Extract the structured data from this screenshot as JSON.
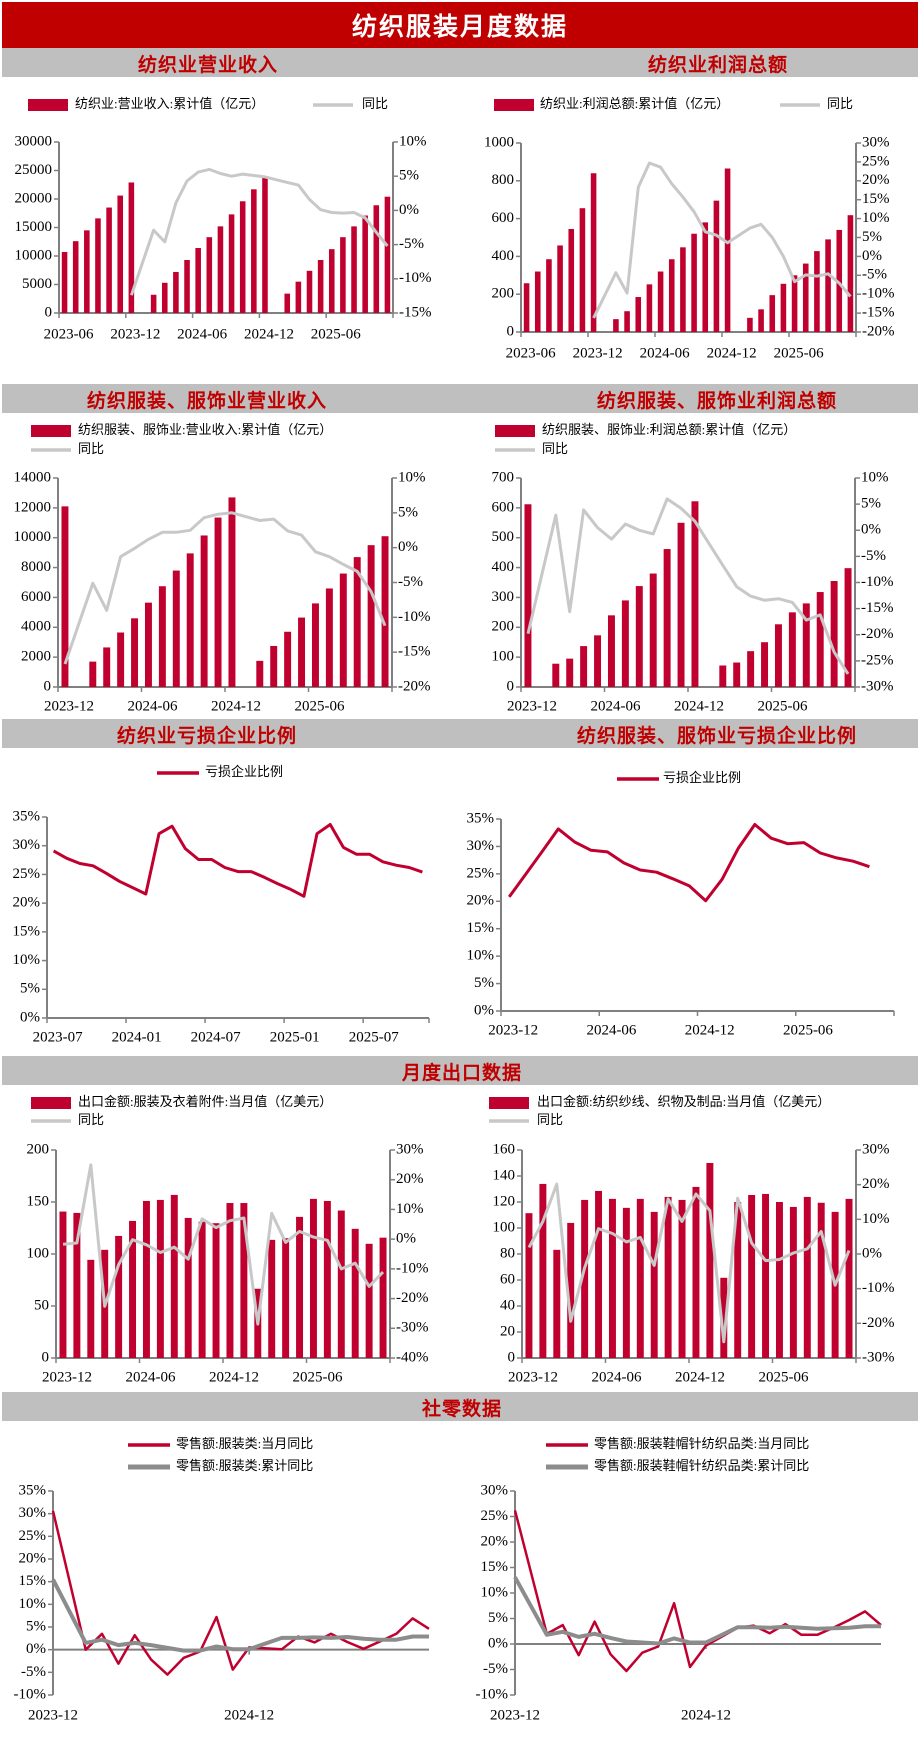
{
  "page_title": "纺织服装月度数据",
  "sections": [
    {
      "titles": [
        "纺织业营业收入",
        "纺织业利润总额"
      ]
    },
    {
      "titles": [
        "纺织服装、服饰业营业收入",
        "纺织服装、服饰业利润总额"
      ]
    },
    {
      "titles": [
        "纺织业亏损企业比例",
        "纺织服装、服饰业亏损企业比例"
      ]
    },
    {
      "titles": [
        "月度出口数据"
      ]
    },
    {
      "titles": [
        "社零数据"
      ]
    }
  ],
  "colors": {
    "bar": "#c0002f",
    "yoy_line": "#c8c8c8",
    "cum_line": "#8c8c8c",
    "title_bg": "#c00000",
    "header_bg": "#bfbfbf",
    "axis": "#808080"
  },
  "chart_data": [
    {
      "type": "bar",
      "title": "纺织业营业收入",
      "x_start": "2023-06",
      "x_step": "month",
      "xtick_labels": [
        "2023-06",
        "2023-12",
        "2024-06",
        "2024-12",
        "2025-06"
      ],
      "left_axis": {
        "min": 0,
        "max": 30000,
        "ticks": [
          "0",
          "5000",
          "10000",
          "15000",
          "20000",
          "25000",
          "30000"
        ]
      },
      "right_axis": {
        "min": -15,
        "max": 10,
        "ticks": [
          "-15%",
          "-10%",
          "-5%",
          "0%",
          "5%",
          "10%"
        ]
      },
      "series": [
        {
          "name": "纺织业:营业收入:累计值（亿元）",
          "kind": "bar",
          "axis": "left",
          "values": [
            10700,
            12600,
            14500,
            16600,
            18500,
            20600,
            22900,
            null,
            3200,
            5300,
            7200,
            9300,
            11400,
            13300,
            15200,
            17300,
            19600,
            21700,
            23800,
            null,
            3400,
            5500,
            7400,
            9300,
            11200,
            13300,
            15200,
            17100,
            18900,
            20400
          ]
        },
        {
          "name": "同比",
          "kind": "line",
          "axis": "right",
          "values": [
            null,
            null,
            null,
            null,
            null,
            null,
            -12.4,
            null,
            -2.9,
            -4.6,
            1.1,
            4.3,
            5.6,
            6.0,
            5.4,
            5.0,
            5.3,
            5.1,
            4.9,
            null,
            4.1,
            3.7,
            1.6,
            0.1,
            -0.3,
            -0.4,
            -0.3,
            -1.1,
            -3.2,
            -5.2
          ]
        }
      ]
    },
    {
      "type": "bar",
      "title": "纺织业利润总额",
      "x_start": "2023-06",
      "x_step": "month",
      "xtick_labels": [
        "2023-06",
        "2023-12",
        "2024-06",
        "2024-12",
        "2025-06"
      ],
      "left_axis": {
        "min": 0,
        "max": 1000,
        "ticks": [
          "0",
          "200",
          "400",
          "600",
          "800",
          "1000"
        ]
      },
      "right_axis": {
        "min": -20,
        "max": 30,
        "ticks": [
          "-20%",
          "-15%",
          "-10%",
          "-5%",
          "0%",
          "5%",
          "10%",
          "15%",
          "20%",
          "25%",
          "30%"
        ]
      },
      "series": [
        {
          "name": "纺织业:利润总额:累计值（亿元）",
          "kind": "bar",
          "axis": "left",
          "values": [
            258,
            320,
            385,
            458,
            545,
            655,
            840,
            null,
            68,
            110,
            185,
            252,
            320,
            385,
            448,
            520,
            580,
            695,
            865,
            null,
            75,
            120,
            195,
            255,
            300,
            362,
            428,
            490,
            540,
            618
          ]
        },
        {
          "name": "同比",
          "kind": "line",
          "axis": "right",
          "values": [
            null,
            null,
            null,
            null,
            null,
            null,
            -16.3,
            null,
            -4.3,
            -9.7,
            18.3,
            24.7,
            23.6,
            19.2,
            15.7,
            11.8,
            6.5,
            5.6,
            3.6,
            null,
            7.5,
            8.5,
            5,
            0,
            -6.7,
            -4.9,
            -5.2,
            -4.6,
            -7.1,
            -10.6
          ]
        }
      ]
    },
    {
      "type": "bar",
      "title": "纺织服装、服饰业营业收入",
      "x_start": "2023-12",
      "x_step": "month",
      "xtick_labels": [
        "2023-12",
        "2024-06",
        "2024-12",
        "2025-06"
      ],
      "left_axis": {
        "min": 0,
        "max": 14000,
        "ticks": [
          "0",
          "2000",
          "4000",
          "6000",
          "8000",
          "10000",
          "12000",
          "14000"
        ]
      },
      "right_axis": {
        "min": -20,
        "max": 10,
        "ticks": [
          "-20%",
          "-15%",
          "-10%",
          "-5%",
          "0%",
          "5%",
          "10%"
        ]
      },
      "series": [
        {
          "name": "纺织服装、服饰业:营业收入:累计值（亿元）",
          "kind": "bar",
          "axis": "left",
          "values": [
            12100,
            null,
            1700,
            2650,
            3650,
            4600,
            5650,
            6750,
            7800,
            8950,
            10150,
            11350,
            12700,
            null,
            1750,
            2750,
            3700,
            4650,
            5600,
            6600,
            7600,
            8700,
            9500,
            10100
          ]
        },
        {
          "name": "同比",
          "kind": "line",
          "axis": "right",
          "values": [
            -16.7,
            null,
            -5.1,
            -9,
            -1.3,
            -0.1,
            1.2,
            2.2,
            2.2,
            2.5,
            4.3,
            4.8,
            5.0,
            null,
            3.9,
            4.1,
            2.4,
            1.8,
            -0.6,
            -1.3,
            -2.4,
            -3.4,
            -6.3,
            -11.2
          ]
        }
      ]
    },
    {
      "type": "bar",
      "title": "纺织服装、服饰业利润总额",
      "x_start": "2023-12",
      "x_step": "month",
      "xtick_labels": [
        "2023-12",
        "2024-06",
        "2024-12",
        "2025-06"
      ],
      "left_axis": {
        "min": 0,
        "max": 700,
        "ticks": [
          "0",
          "100",
          "200",
          "300",
          "400",
          "500",
          "600",
          "700"
        ]
      },
      "right_axis": {
        "min": -30,
        "max": 10,
        "ticks": [
          "-30%",
          "-25%",
          "-20%",
          "-15%",
          "-10%",
          "-5%",
          "0%",
          "5%",
          "10%"
        ]
      },
      "series": [
        {
          "name": "纺织服装、服饰业:利润总额:累计值（亿元）",
          "kind": "bar",
          "axis": "left",
          "values": [
            612,
            null,
            78,
            95,
            137,
            173,
            240,
            290,
            338,
            380,
            462,
            550,
            622,
            null,
            72,
            82,
            120,
            150,
            210,
            250,
            280,
            318,
            355,
            398
          ]
        },
        {
          "name": "同比",
          "kind": "line",
          "axis": "right",
          "values": [
            -19.8,
            null,
            2.9,
            -15.6,
            3.9,
            0.5,
            -1.7,
            1.2,
            0,
            -0.7,
            6.0,
            4.2,
            1.7,
            null,
            -6.7,
            -10.8,
            -12.6,
            -13.4,
            -13.1,
            -13.8,
            -17.2,
            -16.2,
            -23.3,
            -27.5
          ]
        }
      ]
    },
    {
      "type": "line",
      "title": "纺织业亏损企业比例",
      "x_start": "2023-07",
      "x_step": "month",
      "xtick_labels": [
        "2023-07",
        "2024-01",
        "2024-07",
        "2025-01",
        "2025-07"
      ],
      "left_axis": {
        "min": 0,
        "max": 35,
        "ticks": [
          "0%",
          "5%",
          "10%",
          "15%",
          "20%",
          "25%",
          "30%",
          "35%"
        ]
      },
      "series": [
        {
          "name": "亏损企业比例",
          "kind": "line",
          "axis": "left",
          "values": [
            29.1,
            27.8,
            26.9,
            26.5,
            25.2,
            23.8,
            22.7,
            21.6,
            32.1,
            33.4,
            29.5,
            27.6,
            27.6,
            26.2,
            25.5,
            25.5,
            24.5,
            23.4,
            22.4,
            21.2,
            32.1,
            33.7,
            29.7,
            28.5,
            28.5,
            27.2,
            26.6,
            26.2,
            25.4
          ]
        }
      ]
    },
    {
      "type": "line",
      "title": "纺织服装、服饰业亏损企业比例",
      "x_start": "2023-12",
      "x_step": "month",
      "xtick_labels": [
        "2023-12",
        "2024-06",
        "2024-12",
        "2025-06"
      ],
      "left_axis": {
        "min": 0,
        "max": 35,
        "ticks": [
          "0%",
          "5%",
          "10%",
          "15%",
          "20%",
          "25%",
          "30%",
          "35%"
        ]
      },
      "series": [
        {
          "name": "亏损企业比例",
          "kind": "line",
          "axis": "left",
          "values": [
            20.8,
            24.9,
            29.0,
            33.2,
            30.8,
            29.3,
            29.0,
            27.0,
            25.7,
            25.3,
            24.1,
            22.8,
            20.1,
            24.0,
            29.7,
            34.0,
            31.5,
            30.5,
            30.7,
            28.8,
            27.9,
            27.3,
            26.3,
            null
          ]
        }
      ]
    },
    {
      "type": "bar",
      "title": "出口金额:服装及衣着附件",
      "x_start": "2023-12",
      "x_step": "month",
      "xtick_labels": [
        "2023-12",
        "2024-06",
        "2024-12",
        "2025-06"
      ],
      "left_axis": {
        "min": 0,
        "max": 200,
        "ticks": [
          "0",
          "50",
          "100",
          "150",
          "200"
        ]
      },
      "right_axis": {
        "min": -40,
        "max": 30,
        "ticks": [
          "-40%",
          "-30%",
          "-20%",
          "-10%",
          "0%",
          "10%",
          "20%",
          "30%"
        ]
      },
      "series": [
        {
          "name": "出口金额:服装及衣着附件:当月值（亿美元）",
          "kind": "bar",
          "axis": "left",
          "values": [
            140.8,
            139.5,
            94.4,
            104,
            117.4,
            131.8,
            151,
            152,
            156.8,
            134.7,
            131,
            129.6,
            149,
            149,
            66.6,
            113.6,
            115.2,
            135.7,
            153,
            151,
            141.8,
            124.2,
            109.8,
            115.7
          ]
        },
        {
          "name": "同比",
          "kind": "line",
          "axis": "right",
          "values": [
            -1.7,
            -1.3,
            25,
            -22.6,
            -8.6,
            -0.2,
            -1.9,
            -4.5,
            -2.7,
            -6.7,
            6.8,
            3.9,
            6.2,
            7.1,
            -28.6,
            8.7,
            -1.1,
            2.6,
            0.7,
            -0.4,
            -10,
            -8.1,
            -15.9,
            -11.1
          ]
        }
      ]
    },
    {
      "type": "bar",
      "title": "出口金额:纺织纱线、织物及制品",
      "x_start": "2023-12",
      "x_step": "month",
      "xtick_labels": [
        "2023-12",
        "2024-06",
        "2024-12",
        "2025-06"
      ],
      "left_axis": {
        "min": 0,
        "max": 160,
        "ticks": [
          "0",
          "20",
          "40",
          "60",
          "80",
          "100",
          "120",
          "140",
          "160"
        ]
      },
      "right_axis": {
        "min": -30,
        "max": 30,
        "ticks": [
          "-30%",
          "-20%",
          "-10%",
          "0%",
          "10%",
          "20%",
          "30%"
        ]
      },
      "series": [
        {
          "name": "出口金额:纺织纱线、织物及制品:当月值（亿美元）",
          "kind": "bar",
          "axis": "left",
          "values": [
            111.4,
            133.9,
            83.2,
            103.9,
            121.6,
            128.5,
            122.4,
            115.5,
            122.4,
            112.4,
            123.9,
            121.6,
            131.6,
            150,
            61.7,
            120,
            125.4,
            126.2,
            120,
            116.2,
            123.9,
            119.4,
            112.4,
            122.4
          ]
        },
        {
          "name": "同比",
          "kind": "line",
          "axis": "right",
          "values": [
            1.9,
            9.4,
            20.2,
            -19.4,
            -4,
            7.3,
            5.9,
            3.5,
            4.8,
            -3.3,
            15.9,
            9.4,
            17.3,
            12.5,
            -25.3,
            16.1,
            3.2,
            -1.9,
            -1.6,
            0.3,
            1.5,
            6.5,
            -9,
            1
          ]
        }
      ]
    },
    {
      "type": "line",
      "title": "零售额:服装类",
      "x_start": "2023-12",
      "x_step": "month",
      "xtick_labels": [
        "2023-12",
        "2024-12"
      ],
      "left_axis": {
        "min": -10,
        "max": 35,
        "ticks": [
          "-10%",
          "-5%",
          "0%",
          "5%",
          "10%",
          "15%",
          "20%",
          "25%",
          "30%",
          "35%"
        ]
      },
      "series": [
        {
          "name": "零售额:服装类:当月同比",
          "kind": "line",
          "axis": "left",
          "style": "red",
          "values": [
            30.6,
            null,
            0,
            3.5,
            -3.1,
            3.2,
            -2.2,
            -5.5,
            -1.8,
            -0.4,
            7.2,
            -4.4,
            0.5,
            null,
            0.1,
            2.9,
            1.6,
            3.5,
            1.7,
            0.2,
            1.8,
            3.5,
            6.9,
            4.6
          ]
        },
        {
          "name": "零售额:服装类:累计同比",
          "kind": "line",
          "axis": "left",
          "style": "gray",
          "values": [
            15.5,
            null,
            1.5,
            2.2,
            1.0,
            1.5,
            1.0,
            0.4,
            -0.2,
            -0.2,
            0.7,
            0.1,
            0.1,
            null,
            2.6,
            2.6,
            2.7,
            2.6,
            2.8,
            2.4,
            2.2,
            2.2,
            2.9,
            2.9
          ]
        }
      ]
    },
    {
      "type": "line",
      "title": "零售额:服装鞋帽针纺织品类",
      "x_start": "2023-12",
      "x_step": "month",
      "xtick_labels": [
        "2023-12",
        "2024-12"
      ],
      "left_axis": {
        "min": -10,
        "max": 30,
        "ticks": [
          "-10%",
          "-5%",
          "0%",
          "5%",
          "10%",
          "15%",
          "20%",
          "25%",
          "30%"
        ]
      },
      "series": [
        {
          "name": "零售额:服装鞋帽针纺织品类:当月同比",
          "kind": "line",
          "axis": "left",
          "style": "red",
          "values": [
            26.2,
            null,
            2.0,
            3.7,
            -2.2,
            4.4,
            -2.0,
            -5.3,
            -1.7,
            -0.5,
            8.0,
            -4.5,
            -0.3,
            null,
            3.2,
            3.6,
            2.1,
            3.9,
            1.8,
            1.8,
            3.2,
            4.7,
            6.4,
            3.7
          ]
        },
        {
          "name": "零售额:服装鞋帽针纺织品类:累计同比",
          "kind": "line",
          "axis": "left",
          "style": "gray",
          "values": [
            13.1,
            null,
            1.8,
            2.4,
            1.4,
            2.0,
            1.2,
            0.5,
            0.3,
            0.1,
            1.1,
            0.3,
            0.3,
            null,
            3.3,
            3.3,
            3.2,
            3.4,
            3.2,
            3.0,
            3.1,
            3.2,
            3.5,
            3.5
          ]
        }
      ]
    }
  ]
}
